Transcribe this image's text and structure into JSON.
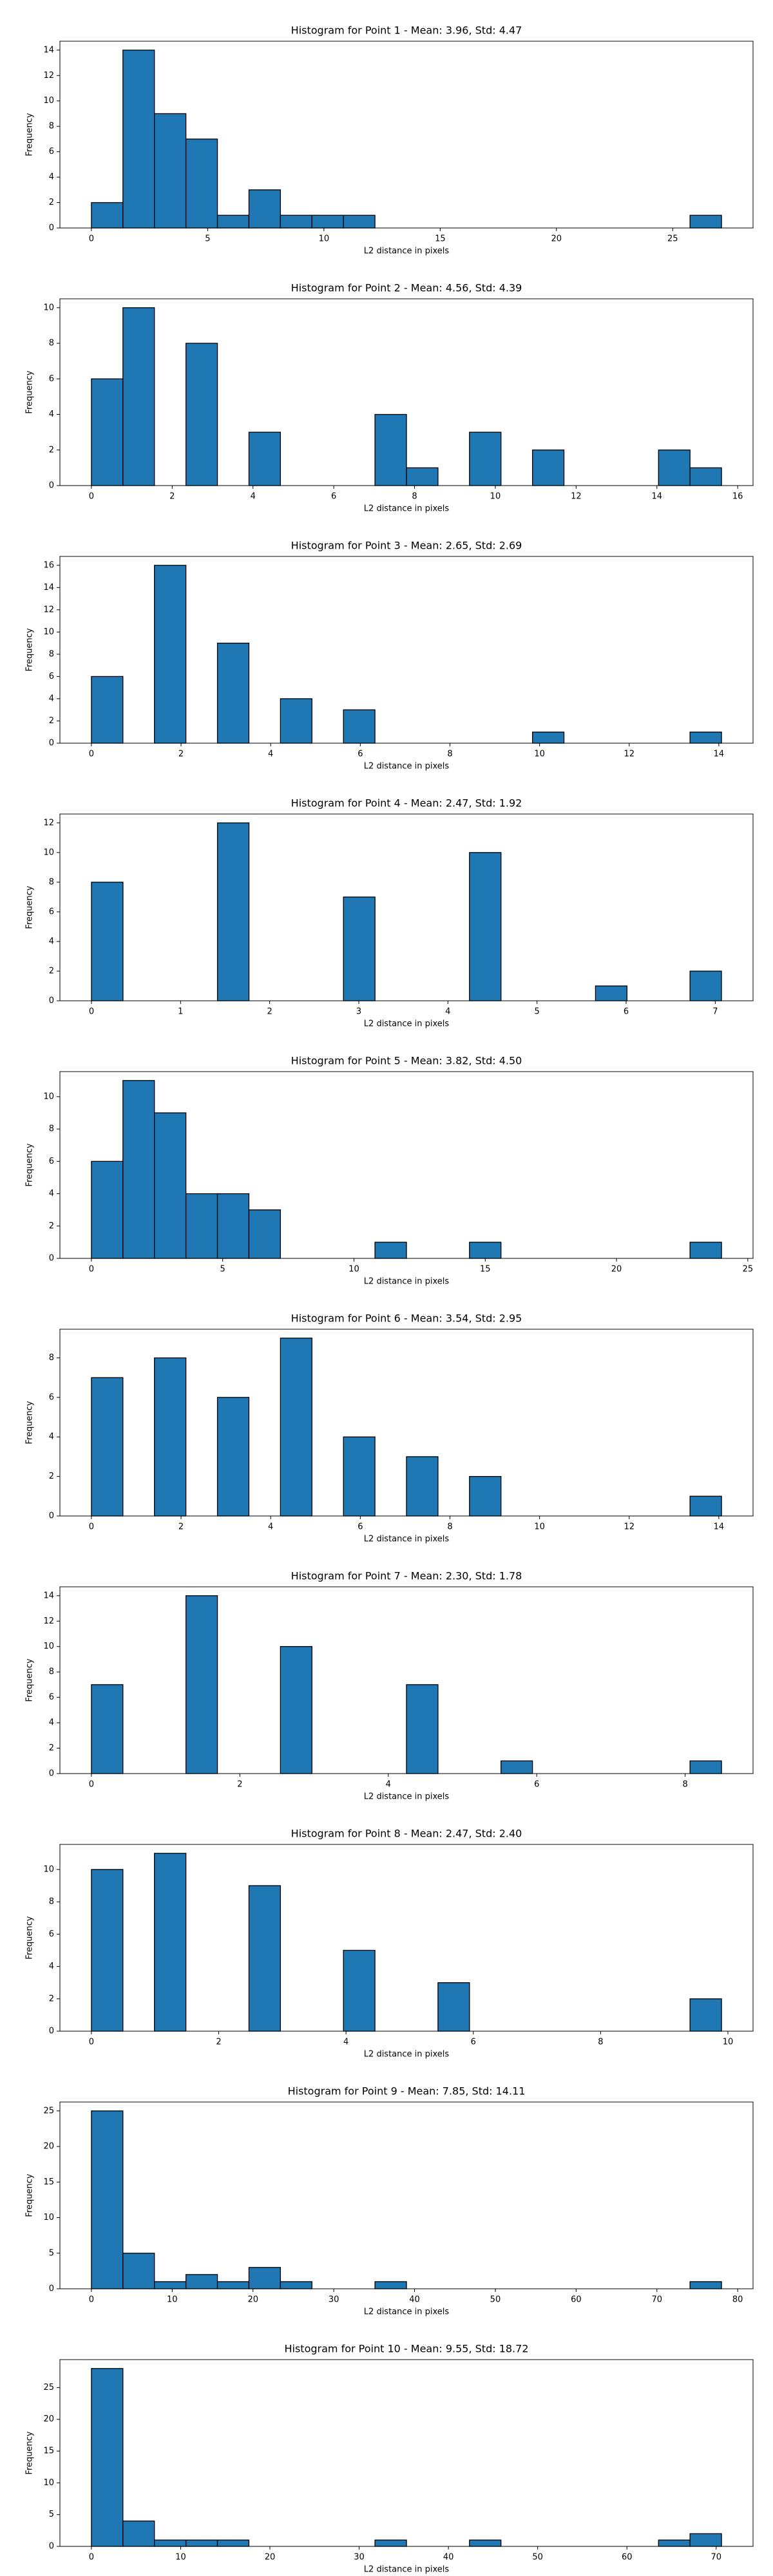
{
  "chart_data": [
    {
      "type": "histogram",
      "title": "Histogram for Point 1 - Mean: 3.96, Std: 4.47",
      "x_label": "L2 distance in pixels",
      "y_label": "Frequency",
      "color": "#1f77b4",
      "edge_color": "#000000",
      "bins": [
        0,
        1.355,
        2.71,
        4.065,
        5.42,
        6.775,
        8.13,
        9.485,
        10.84,
        12.195,
        13.55,
        14.905,
        16.26,
        17.615,
        18.97,
        20.325,
        21.68,
        23.035,
        24.39,
        25.745,
        27.1
      ],
      "values": [
        2,
        14,
        9,
        7,
        1,
        3,
        1,
        1,
        1,
        0,
        0,
        0,
        0,
        0,
        0,
        0,
        0,
        0,
        0,
        1
      ],
      "xlim": [
        -1.355,
        28.455
      ],
      "xticks": [
        0,
        5,
        10,
        15,
        20,
        25
      ],
      "ylim": [
        0,
        14.7
      ],
      "yticks": [
        0,
        2,
        4,
        6,
        8,
        10,
        12,
        14
      ]
    },
    {
      "type": "histogram",
      "title": "Histogram for Point 2 - Mean: 4.56, Std: 4.39",
      "x_label": "L2 distance in pixels",
      "y_label": "Frequency",
      "color": "#1f77b4",
      "edge_color": "#000000",
      "bins": [
        0,
        0.78,
        1.56,
        2.34,
        3.12,
        3.9,
        4.68,
        5.46,
        6.24,
        7.02,
        7.8,
        8.58,
        9.36,
        10.14,
        10.92,
        11.7,
        12.48,
        13.26,
        14.04,
        14.82,
        15.6
      ],
      "values": [
        6,
        10,
        0,
        8,
        0,
        3,
        0,
        0,
        0,
        4,
        1,
        0,
        3,
        0,
        2,
        0,
        0,
        0,
        2,
        1
      ],
      "xlim": [
        -0.78,
        16.38
      ],
      "xticks": [
        0,
        2,
        4,
        6,
        8,
        10,
        12,
        14,
        16
      ],
      "ylim": [
        0,
        10.5
      ],
      "yticks": [
        0,
        2,
        4,
        6,
        8,
        10
      ]
    },
    {
      "type": "histogram",
      "title": "Histogram for Point 3 - Mean: 2.65, Std: 2.69",
      "x_label": "L2 distance in pixels",
      "y_label": "Frequency",
      "color": "#1f77b4",
      "edge_color": "#000000",
      "bins": [
        0,
        0.703,
        1.406,
        2.109,
        2.812,
        3.515,
        4.218,
        4.921,
        5.624,
        6.327,
        7.03,
        7.733,
        8.436,
        9.139,
        9.842,
        10.545,
        11.248,
        11.951,
        12.654,
        13.357,
        14.06
      ],
      "values": [
        6,
        0,
        16,
        0,
        9,
        0,
        4,
        0,
        3,
        0,
        0,
        0,
        0,
        0,
        1,
        0,
        0,
        0,
        0,
        1
      ],
      "xlim": [
        -0.703,
        14.763
      ],
      "xticks": [
        0,
        2,
        4,
        6,
        8,
        10,
        12,
        14
      ],
      "ylim": [
        0,
        16.8
      ],
      "yticks": [
        0,
        2,
        4,
        6,
        8,
        10,
        12,
        14,
        16
      ]
    },
    {
      "type": "histogram",
      "title": "Histogram for Point 4 - Mean: 2.47, Std: 1.92",
      "x_label": "L2 distance in pixels",
      "y_label": "Frequency",
      "color": "#1f77b4",
      "edge_color": "#000000",
      "bins": [
        0,
        0.354,
        0.707,
        1.061,
        1.414,
        1.768,
        2.121,
        2.475,
        2.828,
        3.182,
        3.535,
        3.889,
        4.242,
        4.596,
        4.949,
        5.303,
        5.656,
        6.01,
        6.363,
        6.717,
        7.07
      ],
      "values": [
        8,
        0,
        0,
        0,
        12,
        0,
        0,
        0,
        7,
        0,
        0,
        0,
        10,
        0,
        0,
        0,
        1,
        0,
        0,
        2
      ],
      "xlim": [
        -0.354,
        7.424
      ],
      "xticks": [
        0,
        1,
        2,
        3,
        4,
        5,
        6,
        7
      ],
      "ylim": [
        0,
        12.6
      ],
      "yticks": [
        0,
        2,
        4,
        6,
        8,
        10,
        12
      ]
    },
    {
      "type": "histogram",
      "title": "Histogram for Point 5 - Mean: 3.82, Std: 4.50",
      "x_label": "L2 distance in pixels",
      "y_label": "Frequency",
      "color": "#1f77b4",
      "edge_color": "#000000",
      "bins": [
        0,
        1.2,
        2.4,
        3.6,
        4.8,
        6,
        7.2,
        8.4,
        9.6,
        10.8,
        12,
        13.2,
        14.4,
        15.6,
        16.8,
        18,
        19.2,
        20.4,
        21.6,
        22.8,
        24
      ],
      "values": [
        6,
        11,
        9,
        4,
        4,
        3,
        0,
        0,
        0,
        1,
        0,
        0,
        1,
        0,
        0,
        0,
        0,
        0,
        0,
        1
      ],
      "xlim": [
        -1.2,
        25.2
      ],
      "xticks": [
        0,
        5,
        10,
        15,
        20,
        25
      ],
      "ylim": [
        0,
        11.55
      ],
      "yticks": [
        0,
        2,
        4,
        6,
        8,
        10
      ]
    },
    {
      "type": "histogram",
      "title": "Histogram for Point 6 - Mean: 3.54, Std: 2.95",
      "x_label": "L2 distance in pixels",
      "y_label": "Frequency",
      "color": "#1f77b4",
      "edge_color": "#000000",
      "bins": [
        0,
        0.703,
        1.406,
        2.109,
        2.812,
        3.515,
        4.218,
        4.921,
        5.624,
        6.327,
        7.03,
        7.733,
        8.436,
        9.139,
        9.842,
        10.545,
        11.248,
        11.951,
        12.654,
        13.357,
        14.06
      ],
      "values": [
        7,
        0,
        8,
        0,
        6,
        0,
        9,
        0,
        4,
        0,
        3,
        0,
        2,
        0,
        0,
        0,
        0,
        0,
        0,
        1
      ],
      "xlim": [
        -0.703,
        14.763
      ],
      "xticks": [
        0,
        2,
        4,
        6,
        8,
        10,
        12,
        14
      ],
      "ylim": [
        0,
        9.45
      ],
      "yticks": [
        0,
        2,
        4,
        6,
        8
      ]
    },
    {
      "type": "histogram",
      "title": "Histogram for Point 7 - Mean: 2.30, Std: 1.78",
      "x_label": "L2 distance in pixels",
      "y_label": "Frequency",
      "color": "#1f77b4",
      "edge_color": "#000000",
      "bins": [
        0,
        0.4245,
        0.849,
        1.2735,
        1.698,
        2.1225,
        2.547,
        2.9715,
        3.396,
        3.8205,
        4.245,
        4.6695,
        5.094,
        5.5185,
        5.943,
        6.3675,
        6.792,
        7.2165,
        7.641,
        8.0655,
        8.49
      ],
      "values": [
        7,
        0,
        0,
        14,
        0,
        0,
        10,
        0,
        0,
        0,
        7,
        0,
        0,
        1,
        0,
        0,
        0,
        0,
        0,
        1
      ],
      "xlim": [
        -0.4245,
        8.9145
      ],
      "xticks": [
        0,
        2,
        4,
        6,
        8
      ],
      "ylim": [
        0,
        14.7
      ],
      "yticks": [
        0,
        2,
        4,
        6,
        8,
        10,
        12,
        14
      ]
    },
    {
      "type": "histogram",
      "title": "Histogram for Point 8 - Mean: 2.47, Std: 2.40",
      "x_label": "L2 distance in pixels",
      "y_label": "Frequency",
      "color": "#1f77b4",
      "edge_color": "#000000",
      "bins": [
        0,
        0.495,
        0.99,
        1.485,
        1.98,
        2.475,
        2.97,
        3.465,
        3.96,
        4.455,
        4.95,
        5.445,
        5.94,
        6.435,
        6.93,
        7.425,
        7.92,
        8.415,
        8.91,
        9.405,
        9.9
      ],
      "values": [
        10,
        0,
        11,
        0,
        0,
        9,
        0,
        0,
        5,
        0,
        0,
        3,
        0,
        0,
        0,
        0,
        0,
        0,
        0,
        2
      ],
      "xlim": [
        -0.495,
        10.395
      ],
      "xticks": [
        0,
        2,
        4,
        6,
        8,
        10
      ],
      "ylim": [
        0,
        11.55
      ],
      "yticks": [
        0,
        2,
        4,
        6,
        8,
        10
      ]
    },
    {
      "type": "histogram",
      "title": "Histogram for Point 9 - Mean: 7.85, Std: 14.11",
      "x_label": "L2 distance in pixels",
      "y_label": "Frequency",
      "color": "#1f77b4",
      "edge_color": "#000000",
      "bins": [
        0,
        3.9,
        7.8,
        11.7,
        15.6,
        19.5,
        23.4,
        27.3,
        31.2,
        35.1,
        39,
        42.9,
        46.8,
        50.7,
        54.6,
        58.5,
        62.4,
        66.3,
        70.2,
        74.1,
        78
      ],
      "values": [
        25,
        5,
        1,
        2,
        1,
        3,
        1,
        0,
        0,
        1,
        0,
        0,
        0,
        0,
        0,
        0,
        0,
        0,
        0,
        1
      ],
      "xlim": [
        -3.9,
        81.9
      ],
      "xticks": [
        0,
        10,
        20,
        30,
        40,
        50,
        60,
        70,
        80
      ],
      "ylim": [
        0,
        26.25
      ],
      "yticks": [
        0,
        5,
        10,
        15,
        20,
        25
      ]
    },
    {
      "type": "histogram",
      "title": "Histogram for Point 10 - Mean: 9.55, Std: 18.72",
      "x_label": "L2 distance in pixels",
      "y_label": "Frequency",
      "color": "#1f77b4",
      "edge_color": "#000000",
      "bins": [
        0,
        3.53,
        7.06,
        10.59,
        14.12,
        17.65,
        21.18,
        24.71,
        28.24,
        31.77,
        35.3,
        38.83,
        42.36,
        45.89,
        49.42,
        52.95,
        56.48,
        60.01,
        63.54,
        67.07,
        70.6
      ],
      "values": [
        28,
        4,
        1,
        1,
        1,
        0,
        0,
        0,
        0,
        1,
        0,
        0,
        1,
        0,
        0,
        0,
        0,
        0,
        1,
        2
      ],
      "xlim": [
        -3.53,
        74.13
      ],
      "xticks": [
        0,
        10,
        20,
        30,
        40,
        50,
        60,
        70
      ],
      "ylim": [
        0,
        29.4
      ],
      "yticks": [
        0,
        5,
        10,
        15,
        20,
        25
      ]
    }
  ]
}
